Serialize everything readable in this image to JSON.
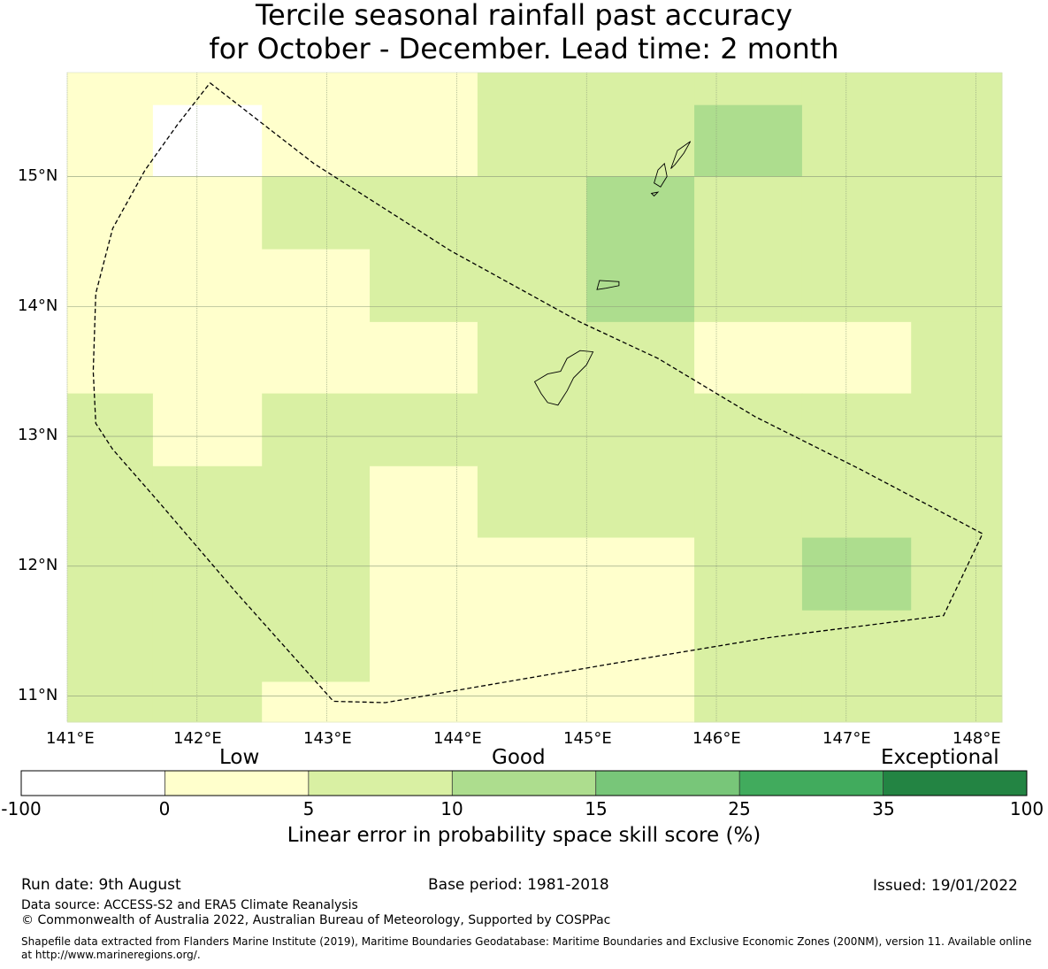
{
  "title": {
    "line1": "Tercile seasonal rainfall past accuracy",
    "line2": "for October - December. Lead time: 2 month"
  },
  "map": {
    "lon_range": [
      141,
      148.2
    ],
    "lat_range": [
      10.8,
      15.8
    ],
    "lon_ticks": [
      "141°E",
      "142°E",
      "143°E",
      "144°E",
      "145°E",
      "146°E",
      "147°E",
      "148°E"
    ],
    "lat_ticks": [
      "15°N",
      "14°N",
      "13°N",
      "12°N",
      "11°N"
    ],
    "grid": true,
    "skill_grid": {
      "lon_edges": [
        141.0,
        141.66,
        142.5,
        143.33,
        144.16,
        145.0,
        145.83,
        146.66,
        147.5,
        148.2
      ],
      "lat_edges": [
        15.55,
        15.0,
        14.44,
        13.88,
        13.33,
        12.77,
        12.22,
        11.66,
        11.11,
        10.8
      ],
      "classes": [
        [
          1,
          0,
          1,
          1,
          2,
          2,
          3,
          2,
          2
        ],
        [
          1,
          1,
          2,
          2,
          2,
          3,
          2,
          2,
          2
        ],
        [
          1,
          1,
          1,
          2,
          2,
          3,
          2,
          2,
          2
        ],
        [
          1,
          1,
          1,
          1,
          2,
          2,
          1,
          1,
          2
        ],
        [
          2,
          1,
          2,
          2,
          2,
          2,
          2,
          2,
          2
        ],
        [
          2,
          2,
          2,
          1,
          2,
          2,
          2,
          2,
          2
        ],
        [
          2,
          2,
          2,
          1,
          1,
          1,
          2,
          3,
          2
        ],
        [
          2,
          2,
          2,
          1,
          1,
          1,
          2,
          2,
          2
        ],
        [
          2,
          2,
          1,
          1,
          1,
          1,
          2,
          2,
          2
        ]
      ],
      "top_strip_classes": [
        1,
        1,
        1,
        1,
        2,
        2,
        2,
        2,
        2
      ],
      "class_colors": [
        "#ffffff",
        "#ffffcc",
        "#d9f0a3",
        "#addd8e",
        "#78c679",
        "#41ab5d",
        "#238443"
      ]
    },
    "eez_boundary": "dashed"
  },
  "colorbar": {
    "words": [
      "Low",
      "Good",
      "Exceptional"
    ],
    "ticks": [
      "-100",
      "0",
      "5",
      "10",
      "15",
      "25",
      "35",
      "100"
    ],
    "colors": [
      "#ffffff",
      "#ffffcc",
      "#d9f0a3",
      "#addd8e",
      "#78c679",
      "#41ab5d",
      "#238443"
    ],
    "label": "Linear error in probability space skill score (%)"
  },
  "footer": {
    "run_date": "Run date: 9th August",
    "base_period": "Base period: 1981-2018",
    "issued": "Issued: 19/01/2022",
    "data_source": "Data source: ACCESS-S2 and ERA5 Climate Reanalysis",
    "copyright": "© Commonwealth of Australia 2022, Australian Bureau of Meteorology, Supported by COSPPac",
    "shapefile_note": "Shapefile data extracted from Flanders Marine Institute (2019), Maritime Boundaries Geodatabase: Maritime Boundaries and Exclusive Economic Zones (200NM), version 11. Available online at http://www.marineregions.org/."
  }
}
